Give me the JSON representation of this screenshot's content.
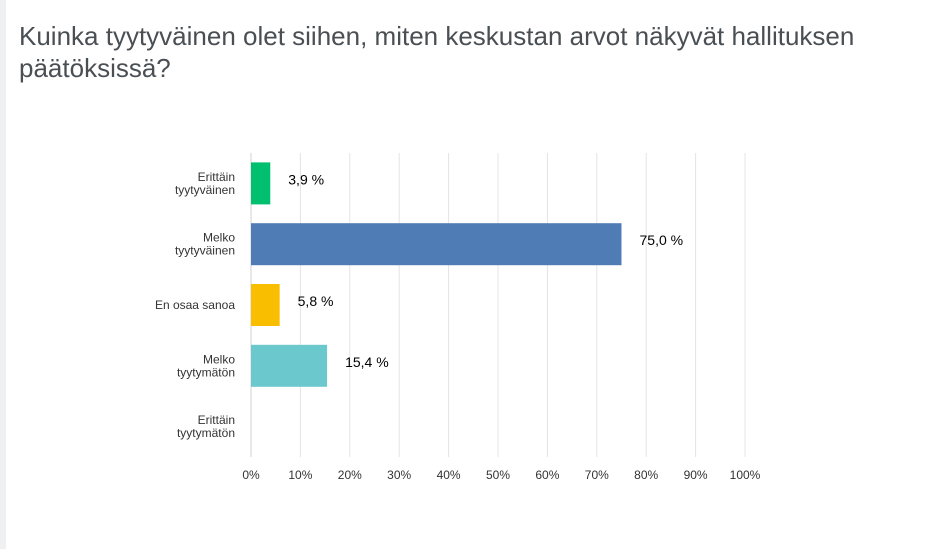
{
  "question": {
    "title": "Kuinka tyytyväinen olet siihen, miten keskustan arvot näkyvät hallituksen päätöksissä?"
  },
  "chart_data": {
    "type": "bar",
    "orientation": "horizontal",
    "categories": [
      [
        "Erittäin",
        "tyytyväinen"
      ],
      [
        "Melko",
        "tyytyväinen"
      ],
      [
        "En osaa sanoa"
      ],
      [
        "Melko",
        "tyytymätön"
      ],
      [
        "Erittäin",
        "tyytymätön"
      ]
    ],
    "values": [
      3.9,
      75.0,
      5.8,
      15.4,
      0
    ],
    "value_labels": [
      "3,9 %",
      "75,0 %",
      "5,8 %",
      "15,4 %",
      ""
    ],
    "colors": [
      "#00bf6f",
      "#507cb6",
      "#f9be00",
      "#6bc8cd",
      "#999999"
    ],
    "xlim": [
      0,
      100
    ],
    "x_ticks": [
      "0%",
      "10%",
      "20%",
      "30%",
      "40%",
      "50%",
      "60%",
      "70%",
      "80%",
      "90%",
      "100%"
    ],
    "grid": true,
    "title": "Kuinka tyytyväinen olet siihen, miten keskustan arvot näkyvät hallituksen päätöksissä?",
    "xlabel": "",
    "ylabel": ""
  }
}
